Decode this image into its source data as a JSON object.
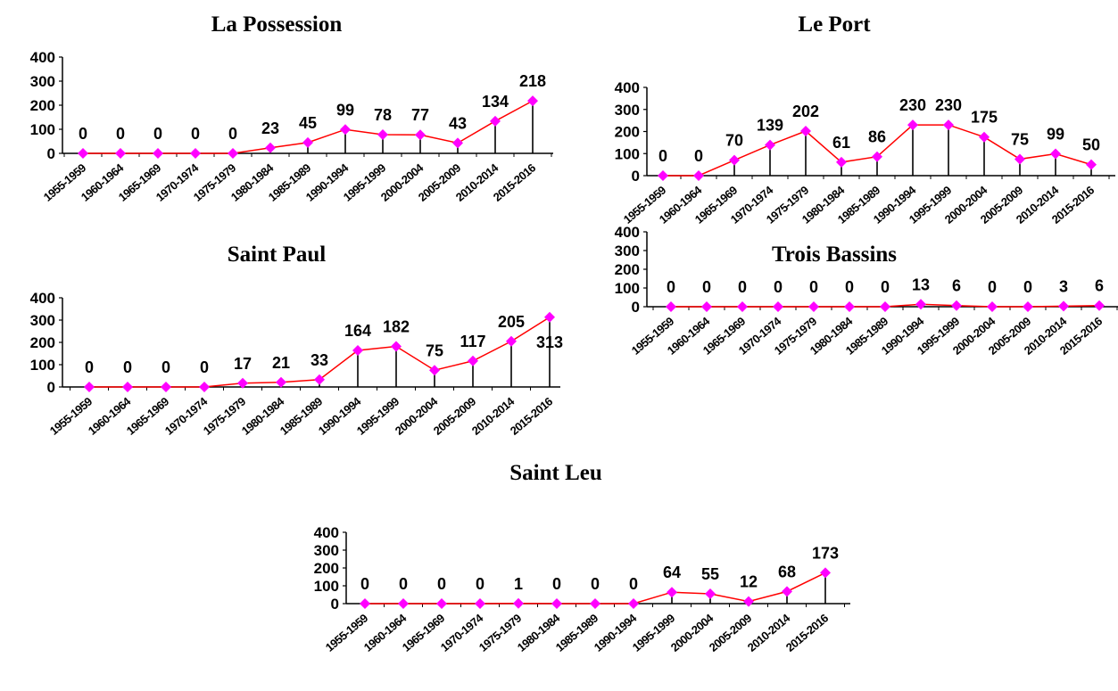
{
  "colors": {
    "line": "#ff0000",
    "marker": "#ff00ff",
    "drop": "#000000"
  },
  "chart_data": [
    {
      "type": "line",
      "title": "La Possession",
      "categories": [
        "1955-1959",
        "1960-1964",
        "1965-1969",
        "1970-1974",
        "1975-1979",
        "1980-1984",
        "1985-1989",
        "1990-1994",
        "1995-1999",
        "2000-2004",
        "2005-2009",
        "2010-2014",
        "2015-2016"
      ],
      "values": [
        0,
        0,
        0,
        0,
        0,
        23,
        45,
        99,
        78,
        77,
        43,
        134,
        218
      ],
      "data_labels": [
        "0",
        "0",
        "0",
        "0",
        "0",
        "23",
        "45",
        "99",
        "78",
        "77",
        "43",
        "134",
        "218"
      ],
      "ylim": [
        0,
        400
      ],
      "yticks": [
        "0",
        "100",
        "200",
        "300",
        "400"
      ],
      "xlabel": "",
      "ylabel": "",
      "legend": "none"
    },
    {
      "type": "line",
      "title": "Le Port",
      "categories": [
        "1955-1959",
        "1960-1964",
        "1965-1969",
        "1970-1974",
        "1975-1979",
        "1980-1984",
        "1985-1989",
        "1990-1994",
        "1995-1999",
        "2000-2004",
        "2005-2009",
        "2010-2014",
        "2015-2016"
      ],
      "values": [
        0,
        0,
        70,
        139,
        202,
        61,
        86,
        230,
        230,
        175,
        75,
        99,
        50
      ],
      "data_labels": [
        "0",
        "0",
        "70",
        "139",
        "202",
        "61",
        "86",
        "230",
        "230",
        "175",
        "75",
        "99",
        "50"
      ],
      "ylim": [
        0,
        400
      ],
      "yticks": [
        "0",
        "100",
        "200",
        "300",
        "400"
      ],
      "xlabel": "",
      "ylabel": "",
      "legend": "none"
    },
    {
      "type": "line",
      "title": "Saint Paul",
      "categories": [
        "1955-1959",
        "1960-1964",
        "1965-1969",
        "1970-1974",
        "1975-1979",
        "1980-1984",
        "1985-1989",
        "1990-1994",
        "1995-1999",
        "2000-2004",
        "2005-2009",
        "2010-2014",
        "2015-2016"
      ],
      "values": [
        0,
        0,
        0,
        0,
        17,
        21,
        33,
        164,
        182,
        75,
        117,
        205,
        313
      ],
      "data_labels": [
        "0",
        "0",
        "0",
        "0",
        "17",
        "21",
        "33",
        "164",
        "182",
        "75",
        "117",
        "205",
        "313"
      ],
      "ylim": [
        0,
        400
      ],
      "yticks": [
        "0",
        "100",
        "200",
        "300",
        "400"
      ],
      "xlabel": "",
      "ylabel": "",
      "legend": "none"
    },
    {
      "type": "line",
      "title": "Trois Bassins",
      "categories": [
        "1955-1959",
        "1960-1964",
        "1965-1969",
        "1970-1974",
        "1975-1979",
        "1980-1984",
        "1985-1989",
        "1990-1994",
        "1995-1999",
        "2000-2004",
        "2005-2009",
        "2010-2014",
        "2015-2016"
      ],
      "values": [
        0,
        0,
        0,
        0,
        0,
        0,
        0,
        13,
        6,
        0,
        0,
        3,
        6
      ],
      "data_labels": [
        "0",
        "0",
        "0",
        "0",
        "0",
        "0",
        "0",
        "13",
        "6",
        "0",
        "0",
        "3",
        "6"
      ],
      "ylim": [
        0,
        400
      ],
      "yticks": [
        "0",
        "100",
        "200",
        "300",
        "400"
      ],
      "xlabel": "",
      "ylabel": "",
      "legend": "none"
    },
    {
      "type": "line",
      "title": "Saint Leu",
      "categories": [
        "1955-1959",
        "1960-1964",
        "1965-1969",
        "1970-1974",
        "1975-1979",
        "1980-1984",
        "1985-1989",
        "1990-1994",
        "1995-1999",
        "2000-2004",
        "2005-2009",
        "2010-2014",
        "2015-2016"
      ],
      "values": [
        0,
        0,
        0,
        0,
        1,
        0,
        0,
        0,
        64,
        55,
        12,
        68,
        173
      ],
      "data_labels": [
        "0",
        "0",
        "0",
        "0",
        "1",
        "0",
        "0",
        "0",
        "64",
        "55",
        "12",
        "68",
        "173"
      ],
      "ylim": [
        0,
        400
      ],
      "yticks": [
        "0",
        "100",
        "200",
        "300",
        "400"
      ],
      "xlabel": "",
      "ylabel": "",
      "legend": "none"
    }
  ]
}
